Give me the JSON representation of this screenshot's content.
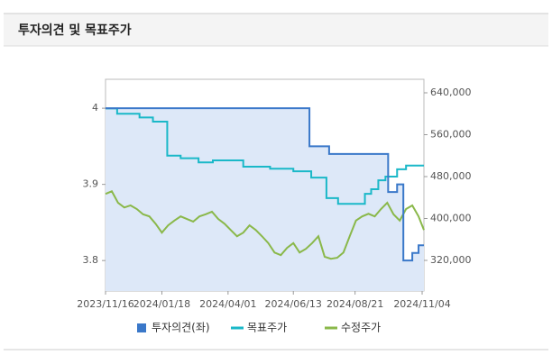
{
  "header": {
    "title": "투자의견 및 목표주가"
  },
  "chart_data": {
    "type": "line",
    "xlim": [
      "2023/11/16",
      "2024/11/06"
    ],
    "xticks": [
      "2023/11/16",
      "2024/01/18",
      "2024/04/01",
      "2024/06/13",
      "2024/08/21",
      "2024/11/04"
    ],
    "ylim": [
      3.76,
      4.038
    ],
    "yticks": [
      3.8,
      3.9,
      4
    ],
    "y2lim": [
      261500,
      665800
    ],
    "y2ticks": [
      {
        "value": 320000,
        "label": "320,000"
      },
      {
        "value": 400000,
        "label": "400,000"
      },
      {
        "value": 480000,
        "label": "480,000"
      },
      {
        "value": 560000,
        "label": "560,000"
      },
      {
        "value": 640000,
        "label": "640,000"
      }
    ],
    "series": [
      {
        "name": "투자의견(좌)",
        "color": "#3a78c9",
        "fill": "#dde8f8",
        "step": true,
        "x": [
          "2023/11/16",
          "2024/07/01",
          "2024/07/23",
          "2024/09/27",
          "2024/10/07",
          "2024/10/14",
          "2024/10/24",
          "2024/10/31",
          "2024/11/06"
        ],
        "values": [
          4,
          3.95,
          3.94,
          3.89,
          3.9,
          3.8,
          3.81,
          3.82,
          3.82
        ]
      },
      {
        "name": "목표주가",
        "color": "#1ab8c8",
        "axis": "y2",
        "step": true,
        "x": [
          "2023/11/16",
          "2023/11/29",
          "2023/12/24",
          "2024/01/08",
          "2024/01/24",
          "2024/02/08",
          "2024/02/28",
          "2024/03/15",
          "2024/04/18",
          "2024/05/18",
          "2024/06/13",
          "2024/07/03",
          "2024/07/20",
          "2024/08/02",
          "2024/09/01",
          "2024/09/08",
          "2024/09/16",
          "2024/09/24",
          "2024/10/07",
          "2024/10/17",
          "2024/11/06"
        ],
        "values": [
          610000,
          600000,
          593000,
          585000,
          520000,
          515000,
          507000,
          511000,
          499000,
          495000,
          490000,
          478000,
          439000,
          428000,
          447000,
          456000,
          473000,
          480000,
          494000,
          501000,
          501000
        ]
      },
      {
        "name": "수정주가",
        "color": "#8ab84a",
        "axis": "y2",
        "x": [
          "2023/11/16",
          "2023/11/23",
          "2023/11/30",
          "2023/12/07",
          "2023/12/14",
          "2023/12/21",
          "2023/12/28",
          "2024/01/04",
          "2024/01/11",
          "2024/01/18",
          "2024/01/25",
          "2024/02/01",
          "2024/02/08",
          "2024/02/15",
          "2024/02/22",
          "2024/02/29",
          "2024/03/07",
          "2024/03/14",
          "2024/03/21",
          "2024/03/28",
          "2024/04/04",
          "2024/04/11",
          "2024/04/18",
          "2024/04/25",
          "2024/05/02",
          "2024/05/09",
          "2024/05/16",
          "2024/05/23",
          "2024/05/30",
          "2024/06/06",
          "2024/06/13",
          "2024/06/20",
          "2024/06/27",
          "2024/07/04",
          "2024/07/11",
          "2024/07/18",
          "2024/07/25",
          "2024/08/01",
          "2024/08/08",
          "2024/08/15",
          "2024/08/22",
          "2024/08/29",
          "2024/09/05",
          "2024/09/12",
          "2024/09/19",
          "2024/09/26",
          "2024/10/03",
          "2024/10/10",
          "2024/10/17",
          "2024/10/24",
          "2024/10/31",
          "2024/11/06"
        ],
        "values": [
          447000,
          452000,
          430000,
          421000,
          425000,
          418000,
          408000,
          404000,
          390000,
          373000,
          387000,
          396000,
          404000,
          399000,
          394000,
          404000,
          408000,
          413000,
          399000,
          390000,
          378000,
          366000,
          373000,
          387000,
          378000,
          366000,
          353000,
          335000,
          330000,
          344000,
          353000,
          335000,
          342000,
          353000,
          366000,
          327000,
          323000,
          325000,
          335000,
          366000,
          396000,
          404000,
          409000,
          404000,
          418000,
          430000,
          408000,
          396000,
          418000,
          425000,
          404000,
          378000
        ]
      }
    ]
  }
}
